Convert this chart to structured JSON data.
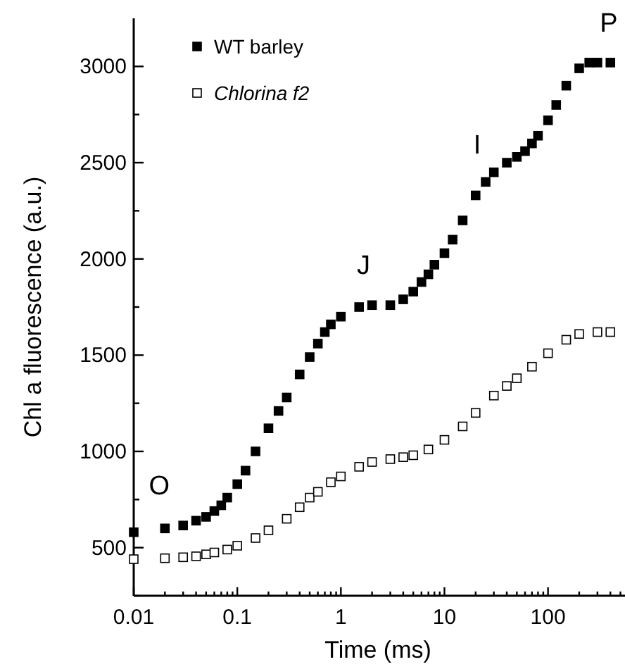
{
  "chart_data": {
    "type": "scatter",
    "xlabel": "Time (ms)",
    "ylabel": "Chl a fluorescence (a.u.)",
    "log": "x",
    "marker": "square",
    "legend": "top left",
    "xlim": [
      0.01,
      520
    ],
    "ylim": [
      250,
      3250
    ],
    "xticks": [
      {
        "value": 0.01,
        "label": "0.01"
      },
      {
        "value": 0.02,
        "label": null
      },
      {
        "value": 0.03,
        "label": null
      },
      {
        "value": 0.04,
        "label": null
      },
      {
        "value": 0.05,
        "label": null
      },
      {
        "value": 0.06,
        "label": null
      },
      {
        "value": 0.07,
        "label": null
      },
      {
        "value": 0.08,
        "label": null
      },
      {
        "value": 0.09,
        "label": null
      },
      {
        "value": 0.1,
        "label": "0.1"
      },
      {
        "value": 0.2,
        "label": null
      },
      {
        "value": 0.3,
        "label": null
      },
      {
        "value": 0.4,
        "label": null
      },
      {
        "value": 0.5,
        "label": null
      },
      {
        "value": 0.6,
        "label": null
      },
      {
        "value": 0.7,
        "label": null
      },
      {
        "value": 0.8,
        "label": null
      },
      {
        "value": 0.9,
        "label": null
      },
      {
        "value": 1,
        "label": "1"
      },
      {
        "value": 2,
        "label": null
      },
      {
        "value": 3,
        "label": null
      },
      {
        "value": 4,
        "label": null
      },
      {
        "value": 5,
        "label": null
      },
      {
        "value": 6,
        "label": null
      },
      {
        "value": 7,
        "label": null
      },
      {
        "value": 8,
        "label": null
      },
      {
        "value": 9,
        "label": null
      },
      {
        "value": 10,
        "label": "10"
      },
      {
        "value": 20,
        "label": null
      },
      {
        "value": 30,
        "label": null
      },
      {
        "value": 40,
        "label": null
      },
      {
        "value": 50,
        "label": null
      },
      {
        "value": 60,
        "label": null
      },
      {
        "value": 70,
        "label": null
      },
      {
        "value": 80,
        "label": null
      },
      {
        "value": 90,
        "label": null
      },
      {
        "value": 100,
        "label": "100"
      },
      {
        "value": 200,
        "label": null
      },
      {
        "value": 300,
        "label": null
      },
      {
        "value": 400,
        "label": null
      },
      {
        "value": 500,
        "label": null
      }
    ],
    "yticks": [
      {
        "value": 250,
        "label": null
      },
      500,
      {
        "value": 750,
        "label": null
      },
      1000,
      {
        "value": 1250,
        "label": null
      },
      1500,
      {
        "value": 1750,
        "label": null
      },
      2000,
      {
        "value": 2250,
        "label": null
      },
      2500,
      {
        "value": 2750,
        "label": null
      },
      3000
    ],
    "annotations": [
      {
        "text": "O",
        "x": 0.02,
        "y": 600
      },
      {
        "text": "J",
        "x": 2,
        "y": 1760
      },
      {
        "text": "I",
        "x": 25,
        "y": 2400
      },
      {
        "text": "P",
        "x": 300,
        "y": 3020
      }
    ],
    "series": [
      {
        "name": "WT barley",
        "color": "#000000",
        "x": [
          0.01,
          0.02,
          0.03,
          0.04,
          0.05,
          0.06,
          0.07,
          0.08,
          0.1,
          0.12,
          0.15,
          0.2,
          0.25,
          0.3,
          0.4,
          0.5,
          0.6,
          0.7,
          0.8,
          1,
          1.5,
          2,
          3,
          4,
          5,
          6,
          7,
          8,
          10,
          12,
          15,
          20,
          25,
          30,
          40,
          50,
          60,
          70,
          80,
          100,
          120,
          150,
          200,
          250,
          300,
          400
        ],
        "values": [
          580,
          600,
          615,
          640,
          660,
          690,
          720,
          760,
          830,
          900,
          1000,
          1120,
          1210,
          1280,
          1400,
          1490,
          1560,
          1620,
          1660,
          1700,
          1750,
          1760,
          1760,
          1790,
          1830,
          1880,
          1920,
          1970,
          2030,
          2100,
          2200,
          2330,
          2400,
          2450,
          2500,
          2530,
          2560,
          2600,
          2640,
          2720,
          2800,
          2900,
          2990,
          3020,
          3020,
          3020
        ]
      },
      {
        "name": "Chlorina f2",
        "color": "#000000",
        "x": [
          0.01,
          0.02,
          0.03,
          0.04,
          0.05,
          0.06,
          0.08,
          0.1,
          0.15,
          0.2,
          0.3,
          0.4,
          0.5,
          0.6,
          0.8,
          1,
          1.5,
          2,
          3,
          4,
          5,
          7,
          10,
          15,
          20,
          30,
          40,
          50,
          70,
          100,
          150,
          200,
          300,
          400
        ],
        "values": [
          440,
          445,
          450,
          455,
          465,
          475,
          490,
          510,
          550,
          590,
          650,
          710,
          760,
          790,
          840,
          870,
          920,
          945,
          960,
          970,
          980,
          1010,
          1060,
          1130,
          1200,
          1290,
          1340,
          1380,
          1440,
          1510,
          1580,
          1610,
          1620,
          1620
        ]
      }
    ]
  }
}
